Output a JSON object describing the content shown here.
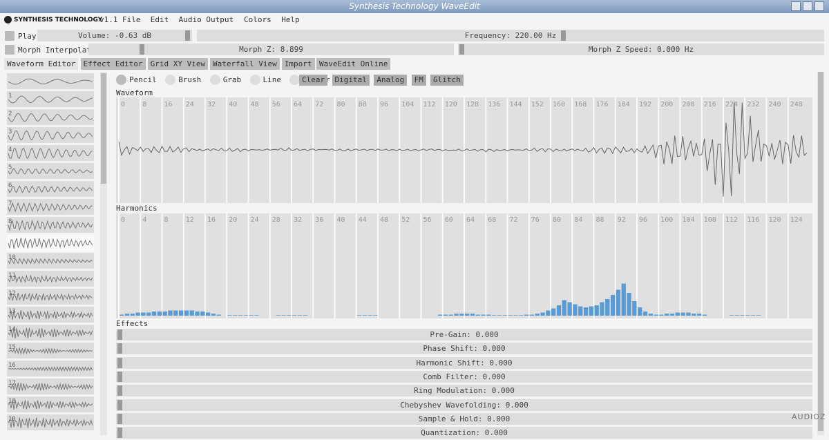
{
  "window_title": "Synthesis Technology WaveEdit",
  "menu": {
    "brand": "SYNTHESIS TECHNOLOGY",
    "version": "v1.1",
    "items": [
      "File",
      "Edit",
      "Audio Output",
      "Colors",
      "Help"
    ]
  },
  "controls": {
    "play": "Play",
    "volume": "Volume: -0.63 dB",
    "frequency": "Frequency: 220.00 Hz",
    "morph_interpolate": "Morph Interpolate",
    "morph_z": "Morph Z: 8.899",
    "morph_z_speed": "Morph Z Speed: 0.000 Hz"
  },
  "tabs": [
    "Waveform Editor",
    "Effect Editor",
    "Grid XY View",
    "Waterfall View",
    "Import",
    "WaveEdit Online"
  ],
  "tools": [
    "Pencil",
    "Brush",
    "Grab",
    "Line",
    "Eraser"
  ],
  "actions": [
    "Clear",
    "Digital",
    "Analog",
    "FM",
    "Glitch"
  ],
  "waveform": {
    "label": "Waveform",
    "ticks": [
      0,
      8,
      16,
      24,
      32,
      40,
      48,
      56,
      64,
      72,
      80,
      88,
      96,
      104,
      112,
      120,
      128,
      136,
      144,
      152,
      160,
      168,
      176,
      184,
      192,
      200,
      208,
      216,
      224,
      232,
      240,
      248
    ]
  },
  "harmonics": {
    "label": "Harmonics",
    "ticks": [
      0,
      4,
      8,
      12,
      16,
      20,
      24,
      28,
      32,
      36,
      40,
      44,
      48,
      52,
      56,
      60,
      64,
      68,
      72,
      76,
      80,
      84,
      88,
      92,
      96,
      100,
      104,
      108,
      112,
      116,
      120,
      124
    ],
    "values": [
      0.01,
      0.02,
      0.02,
      0.03,
      0.03,
      0.03,
      0.04,
      0.04,
      0.04,
      0.05,
      0.05,
      0.05,
      0.05,
      0.05,
      0.04,
      0.04,
      0.03,
      0.02,
      0.01,
      0,
      0.005,
      0.005,
      0.005,
      0.005,
      0.005,
      0.005,
      0,
      0,
      0,
      0.005,
      0.005,
      0.005,
      0.005,
      0.005,
      0.005,
      0,
      0,
      0,
      0,
      0,
      0,
      0,
      0,
      0,
      0.005,
      0.005,
      0.005,
      0.005,
      0,
      0,
      0,
      0,
      0,
      0,
      0,
      0,
      0,
      0,
      0,
      0.01,
      0.01,
      0.01,
      0.02,
      0.02,
      0.02,
      0.02,
      0.01,
      0.01,
      0.01,
      0.005,
      0.005,
      0.005,
      0.005,
      0.005,
      0.005,
      0.01,
      0.01,
      0.02,
      0.03,
      0.05,
      0.07,
      0.1,
      0.15,
      0.13,
      0.11,
      0.09,
      0.08,
      0.09,
      0.1,
      0.13,
      0.16,
      0.2,
      0.25,
      0.31,
      0.22,
      0.14,
      0.08,
      0.04,
      0.02,
      0.01,
      0.01,
      0.02,
      0.02,
      0.03,
      0.03,
      0.03,
      0.02,
      0.02,
      0.01,
      0,
      0,
      0,
      0,
      0.005,
      0.005,
      0.005,
      0.005,
      0.005,
      0.005,
      0,
      0,
      0,
      0,
      0,
      0,
      0,
      0,
      0
    ]
  },
  "effects": {
    "label": "Effects",
    "sliders": [
      "Pre-Gain: 0.000",
      "Phase Shift: 0.000",
      "Harmonic Shift: 0.000",
      "Comb Filter: 0.000",
      "Ring Modulation: 0.000",
      "Chebyshev Wavefolding: 0.000",
      "Sample & Hold: 0.000",
      "Quantization: 0.000"
    ]
  },
  "wave_labels": [
    "1",
    "2",
    "3",
    "4",
    "5",
    "6",
    "7",
    "8",
    "10",
    "11",
    "12",
    "13",
    "14",
    "15",
    "16",
    "17",
    "18",
    "19"
  ],
  "watermark": "AUDIOZ"
}
